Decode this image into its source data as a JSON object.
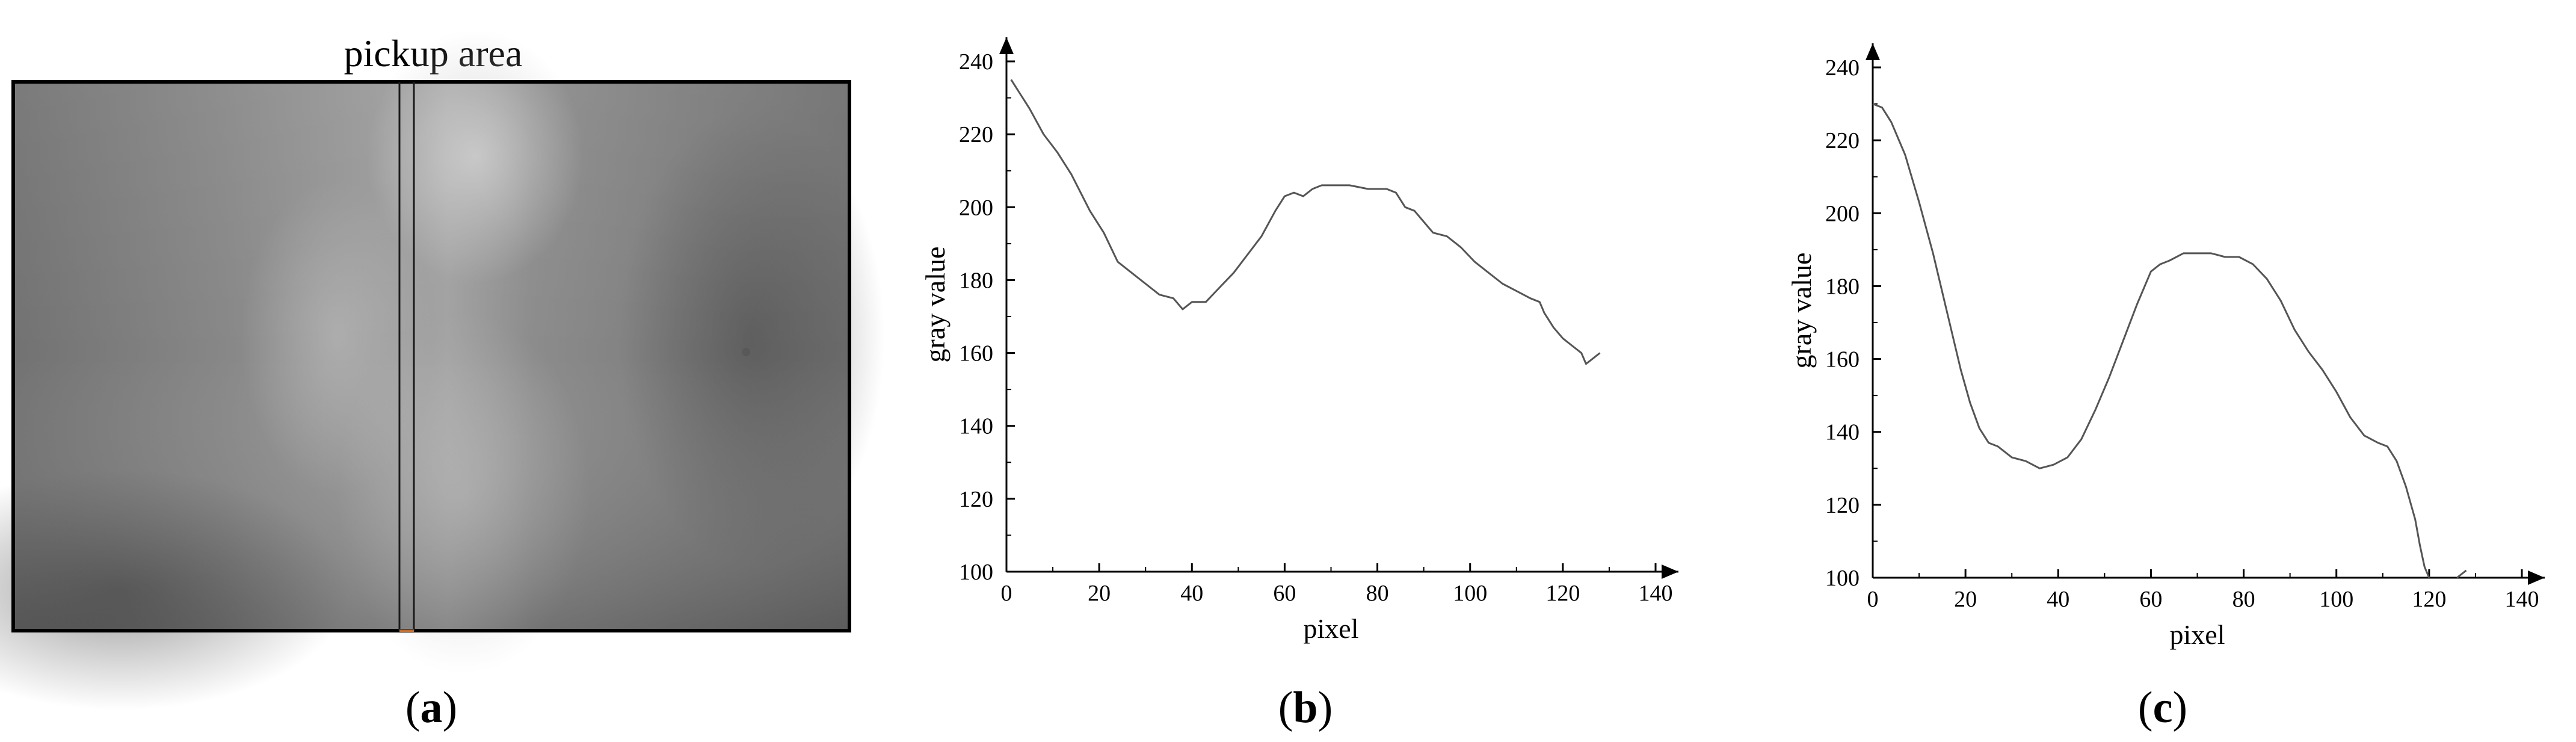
{
  "panel_a": {
    "title": "pickup area",
    "label_open": "(",
    "label_letter": "a",
    "label_close": ")"
  },
  "chart_data": [
    {
      "type": "line",
      "panel_label": "b",
      "xlabel": "pixel",
      "ylabel": "gray value",
      "xlim": [
        0,
        140
      ],
      "ylim": [
        100,
        240
      ],
      "xticks": [
        0,
        20,
        40,
        60,
        80,
        100,
        120,
        140
      ],
      "yticks": [
        100,
        120,
        140,
        160,
        180,
        200,
        220,
        240
      ],
      "grid": false,
      "line_color": "#555555",
      "x": [
        1,
        3,
        5,
        8,
        11,
        14,
        16,
        18,
        21,
        24,
        27,
        30,
        33,
        36,
        38,
        40,
        43,
        46,
        49,
        52,
        55,
        58,
        60,
        62,
        64,
        66,
        68,
        70,
        74,
        78,
        80,
        82,
        84,
        86,
        88,
        90,
        92,
        95,
        98,
        101,
        104,
        107,
        110,
        113,
        115,
        116,
        118,
        120,
        122,
        124,
        125,
        126,
        128
      ],
      "y": [
        235,
        231,
        227,
        220,
        215,
        209,
        204,
        199,
        193,
        185,
        182,
        179,
        176,
        175,
        172,
        174,
        174,
        178,
        182,
        187,
        192,
        199,
        203,
        204,
        203,
        205,
        206,
        206,
        206,
        205,
        205,
        205,
        204,
        200,
        199,
        196,
        193,
        192,
        189,
        185,
        182,
        179,
        177,
        175,
        174,
        171,
        167,
        164,
        162,
        160,
        157,
        158,
        160
      ]
    },
    {
      "type": "line",
      "panel_label": "c",
      "xlabel": "pixel",
      "ylabel": "gray value",
      "xlim": [
        0,
        140
      ],
      "ylim": [
        100,
        240
      ],
      "xticks": [
        0,
        20,
        40,
        60,
        80,
        100,
        120,
        140
      ],
      "yticks": [
        100,
        120,
        140,
        160,
        180,
        200,
        220,
        240
      ],
      "grid": false,
      "line_color": "#555555",
      "x": [
        0,
        2,
        4,
        7,
        10,
        13,
        16,
        19,
        21,
        23,
        25,
        27,
        30,
        33,
        36,
        39,
        42,
        45,
        48,
        51,
        54,
        57,
        60,
        62,
        64,
        67,
        70,
        73,
        76,
        79,
        82,
        85,
        88,
        91,
        94,
        97,
        100,
        103,
        106,
        109,
        111,
        113,
        115,
        117,
        118,
        119,
        120
      ],
      "y": [
        230,
        229,
        225,
        216,
        203,
        189,
        173,
        157,
        148,
        141,
        137,
        136,
        133,
        132,
        130,
        131,
        133,
        138,
        146,
        155,
        165,
        175,
        184,
        186,
        187,
        189,
        189,
        189,
        188,
        188,
        186,
        182,
        176,
        168,
        162,
        157,
        151,
        144,
        139,
        137,
        136,
        132,
        125,
        116,
        109,
        103,
        100
      ],
      "x_tail": [
        126,
        128
      ],
      "y_tail": [
        100,
        102
      ]
    }
  ]
}
